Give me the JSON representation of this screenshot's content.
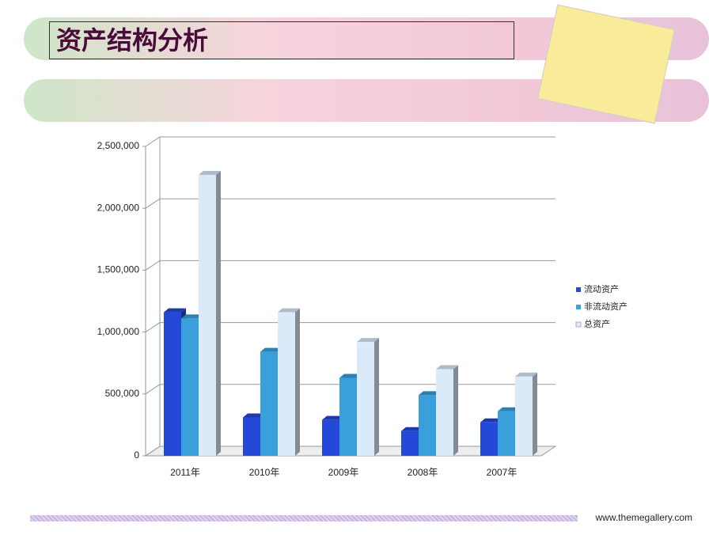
{
  "header": {
    "title": "资产结构分析"
  },
  "chart_data": {
    "type": "bar",
    "categories": [
      "2011年",
      "2010年",
      "2009年",
      "2008年",
      "2007年"
    ],
    "series": [
      {
        "name": "流动资产",
        "color": "#2448d8",
        "values": [
          1160000,
          310000,
          290000,
          200000,
          270000
        ]
      },
      {
        "name": "非流动资产",
        "color": "#3aa0dc",
        "values": [
          1110000,
          840000,
          630000,
          490000,
          360000
        ]
      },
      {
        "name": "总资产",
        "color": "#dbeaf8",
        "values": [
          2270000,
          1160000,
          920000,
          700000,
          640000
        ]
      }
    ],
    "ylim": [
      0,
      2500000
    ],
    "yticks": [
      0,
      {
        "value": 500000,
        "label": "500,000"
      },
      {
        "value": 1000000,
        "label": "1,000,000"
      },
      {
        "value": 1500000,
        "label": "1,500,000"
      },
      {
        "value": 2000000,
        "label": "2,000,000"
      },
      {
        "value": 2500000,
        "label": "2,500,000"
      }
    ],
    "grid": true,
    "legend": "right"
  },
  "footer": {
    "text": "www.themegallery.com"
  }
}
